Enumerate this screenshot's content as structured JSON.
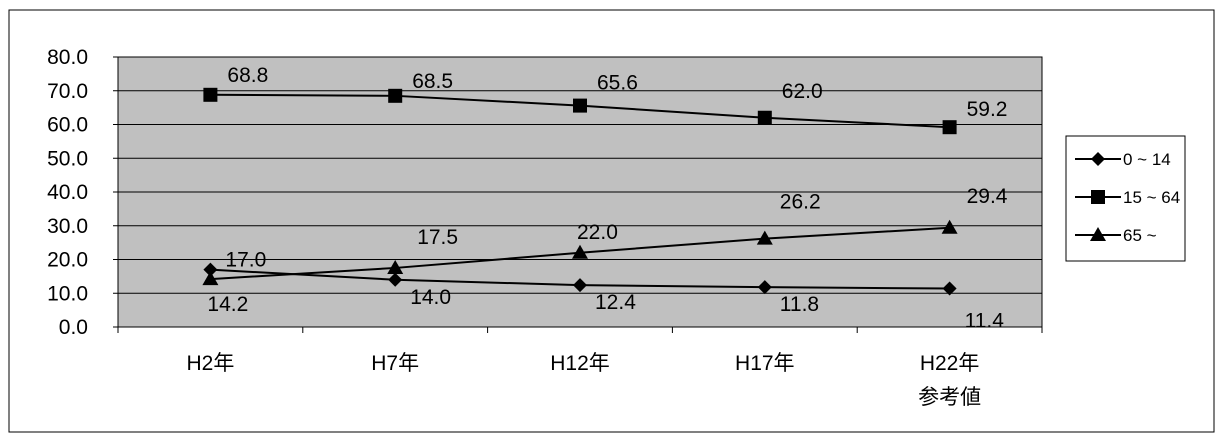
{
  "chart_data": {
    "type": "line",
    "title": "",
    "xlabel": "",
    "ylabel": "",
    "ylim": [
      0,
      80
    ],
    "yticks": [
      "0.0",
      "10.0",
      "20.0",
      "30.0",
      "40.0",
      "50.0",
      "60.0",
      "70.0",
      "80.0"
    ],
    "grid": true,
    "legend_position": "right",
    "categories": [
      [
        "H2年"
      ],
      [
        "H7年"
      ],
      [
        "H12年"
      ],
      [
        "H17年"
      ],
      [
        "H22年",
        "参考値"
      ]
    ],
    "series": [
      {
        "name": "0 ~ 14",
        "marker": "diamond",
        "values": [
          17.0,
          14.0,
          12.4,
          11.8,
          11.4
        ],
        "labels": [
          "17.0",
          "14.0",
          "12.4",
          "11.8",
          "11.4"
        ]
      },
      {
        "name": "15 ~ 64",
        "marker": "square",
        "values": [
          68.8,
          68.5,
          65.6,
          62.0,
          59.2
        ],
        "labels": [
          "68.8",
          "68.5",
          "65.6",
          "62.0",
          "59.2"
        ]
      },
      {
        "name": "65 ~",
        "marker": "triangle",
        "values": [
          14.2,
          17.5,
          22.0,
          26.2,
          29.4
        ],
        "labels": [
          "14.2",
          "17.5",
          "22.0",
          "26.2",
          "29.4"
        ]
      }
    ],
    "colors": {
      "plot_background": "#c0c0c0",
      "line": "#000000",
      "background": "#ffffff"
    }
  }
}
